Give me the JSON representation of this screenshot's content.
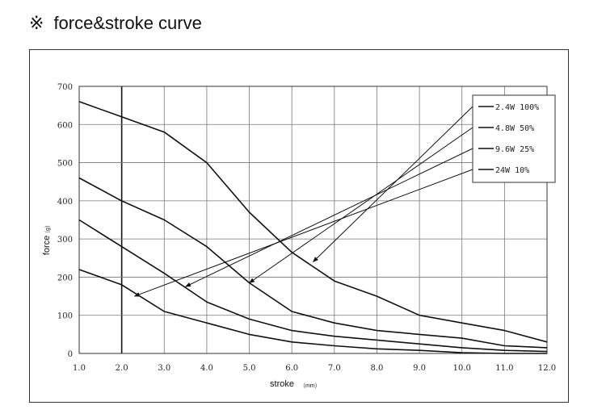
{
  "heading": {
    "mark": "※",
    "title": "force&stroke curve"
  },
  "chart_data": {
    "type": "line",
    "xlabel": "stroke",
    "xunit": "（mm）",
    "ylabel": "force",
    "yunit": "（g）",
    "xlim": [
      1.0,
      12.0
    ],
    "ylim": [
      0,
      700
    ],
    "x_ticks": [
      "1.0",
      "2.0",
      "3.0",
      "4.0",
      "5.0",
      "6.0",
      "7.0",
      "8.0",
      "9.0",
      "10.0",
      "11.0",
      "12.0"
    ],
    "y_ticks": [
      "0",
      "100",
      "200",
      "300",
      "400",
      "500",
      "600",
      "700"
    ],
    "grid": true,
    "legend_position": "top-right",
    "series": [
      {
        "name": "2.4W 100%",
        "x": [
          1,
          2,
          3,
          4,
          5,
          6,
          7,
          8,
          9,
          10,
          11,
          12
        ],
        "y": [
          660,
          620,
          580,
          500,
          370,
          265,
          190,
          150,
          100,
          80,
          60,
          30
        ]
      },
      {
        "name": "4.8W 50%",
        "x": [
          1,
          2,
          3,
          4,
          5,
          6,
          7,
          8,
          9,
          10,
          11,
          12
        ],
        "y": [
          460,
          400,
          350,
          280,
          185,
          110,
          80,
          60,
          50,
          40,
          20,
          15
        ]
      },
      {
        "name": "9.6W 25%",
        "x": [
          1,
          2,
          3,
          4,
          5,
          6,
          7,
          8,
          9,
          10,
          11,
          12
        ],
        "y": [
          350,
          280,
          210,
          135,
          90,
          60,
          45,
          35,
          25,
          15,
          8,
          5
        ]
      },
      {
        "name": "24W 10%",
        "x": [
          1,
          2,
          3,
          4,
          5,
          6,
          7,
          8,
          9,
          10,
          11,
          12
        ],
        "y": [
          220,
          180,
          110,
          80,
          50,
          30,
          20,
          12,
          8,
          2,
          0,
          0
        ]
      }
    ],
    "annotations": [
      {
        "from_series": "2.4W 100%",
        "x": 6.5,
        "y": 240
      },
      {
        "from_series": "4.8W 50%",
        "x": 5.0,
        "y": 185
      },
      {
        "from_series": "9.6W 25%",
        "x": 3.5,
        "y": 175
      },
      {
        "from_series": "24W 10%",
        "x": 2.3,
        "y": 150
      }
    ]
  }
}
